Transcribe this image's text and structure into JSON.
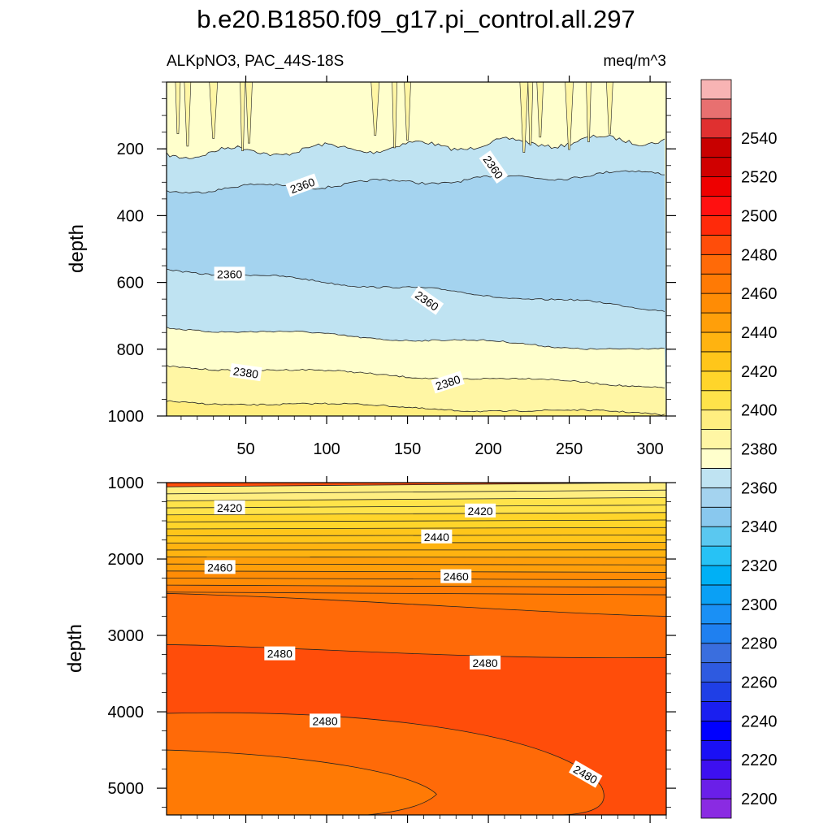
{
  "chart_data": {
    "type": "contour",
    "title": "b.e20.B1850.f09_g17.pi_control.all.297",
    "left_subtitle": "ALKpNO3, PAC_44S-18S",
    "right_subtitle": "meq/m^3",
    "x_range": [
      1,
      310
    ],
    "x_ticks": [
      50,
      100,
      150,
      200,
      250,
      300
    ],
    "upper_panel": {
      "ylabel": "depth",
      "ylim": [
        0,
        1000
      ],
      "y_ticks": [
        200,
        400,
        600,
        800,
        1000
      ],
      "boundaries": [
        {
          "low": 2370,
          "high": 2380,
          "depth_start": 215,
          "depth_end": 170
        },
        {
          "low": 2360,
          "high": 2370,
          "depth_start": 325,
          "depth_end": 270
        },
        {
          "low": 2350,
          "high": 2360,
          "depth_start": 560,
          "depth_end": 680
        },
        {
          "low": 2360,
          "high": 2370,
          "depth_start": 735,
          "depth_end": 805
        },
        {
          "low": 2370,
          "high": 2380,
          "depth_start": 850,
          "depth_end": 910
        },
        {
          "low": 2380,
          "high": 2390,
          "depth_start": 955,
          "depth_end": 995
        }
      ],
      "contour_labels": [
        {
          "text": "2360",
          "x": 85,
          "depth": 310
        },
        {
          "text": "2360",
          "x": 203,
          "depth": 255
        },
        {
          "text": "2360",
          "x": 40,
          "depth": 575
        },
        {
          "text": "2360",
          "x": 162,
          "depth": 655
        },
        {
          "text": "2380",
          "x": 50,
          "depth": 870
        },
        {
          "text": "2380",
          "x": 175,
          "depth": 900
        }
      ]
    },
    "lower_panel": {
      "ylabel": "depth",
      "ylim": [
        1000,
        5350
      ],
      "y_ticks": [
        1000,
        2000,
        3000,
        4000,
        5000
      ],
      "contour_labels": [
        {
          "text": "2420",
          "x": 40,
          "depth": 1330
        },
        {
          "text": "2420",
          "x": 195,
          "depth": 1370
        },
        {
          "text": "2440",
          "x": 168,
          "depth": 1710
        },
        {
          "text": "2460",
          "x": 34,
          "depth": 2110
        },
        {
          "text": "2460",
          "x": 180,
          "depth": 2230
        },
        {
          "text": "2480",
          "x": 71,
          "depth": 3240
        },
        {
          "text": "2480",
          "x": 198,
          "depth": 3360
        },
        {
          "text": "2480",
          "x": 99,
          "depth": 4120
        },
        {
          "text": "2480",
          "x": 260,
          "depth": 4820
        }
      ]
    },
    "colorbar": {
      "levels": [
        2190,
        2200,
        2210,
        2220,
        2230,
        2240,
        2250,
        2260,
        2270,
        2280,
        2290,
        2300,
        2310,
        2320,
        2330,
        2340,
        2350,
        2360,
        2370,
        2380,
        2390,
        2400,
        2410,
        2420,
        2430,
        2440,
        2450,
        2460,
        2470,
        2480,
        2490,
        2500,
        2510,
        2520,
        2530,
        2540,
        2550,
        2560
      ],
      "labeled_values": [
        2200,
        2220,
        2240,
        2260,
        2280,
        2300,
        2320,
        2340,
        2360,
        2380,
        2400,
        2420,
        2440,
        2460,
        2480,
        2500,
        2520,
        2540
      ],
      "colors": [
        "#8a2be2",
        "#6a1fe8",
        "#3d10f0",
        "#1a10f5",
        "#0000ff",
        "#1a1ff0",
        "#1f3fe6",
        "#2e5ae0",
        "#3a6ede",
        "#1f80f0",
        "#1a90f5",
        "#0aa0f5",
        "#00b0f5",
        "#27c2f5",
        "#5ac8f0",
        "#89c8ee",
        "#a4d3ef",
        "#bfe3f2",
        "#ffffcc",
        "#fff6a4",
        "#ffee80",
        "#ffe34a",
        "#ffd52a",
        "#ffc61a",
        "#ffb310",
        "#ff9f0a",
        "#ff8c05",
        "#ff7a05",
        "#ff6a08",
        "#ff4d0a",
        "#ff2a0a",
        "#ff1010",
        "#ee0000",
        "#d00000",
        "#c80000",
        "#e03030",
        "#e87070",
        "#f8b4b4"
      ]
    }
  }
}
